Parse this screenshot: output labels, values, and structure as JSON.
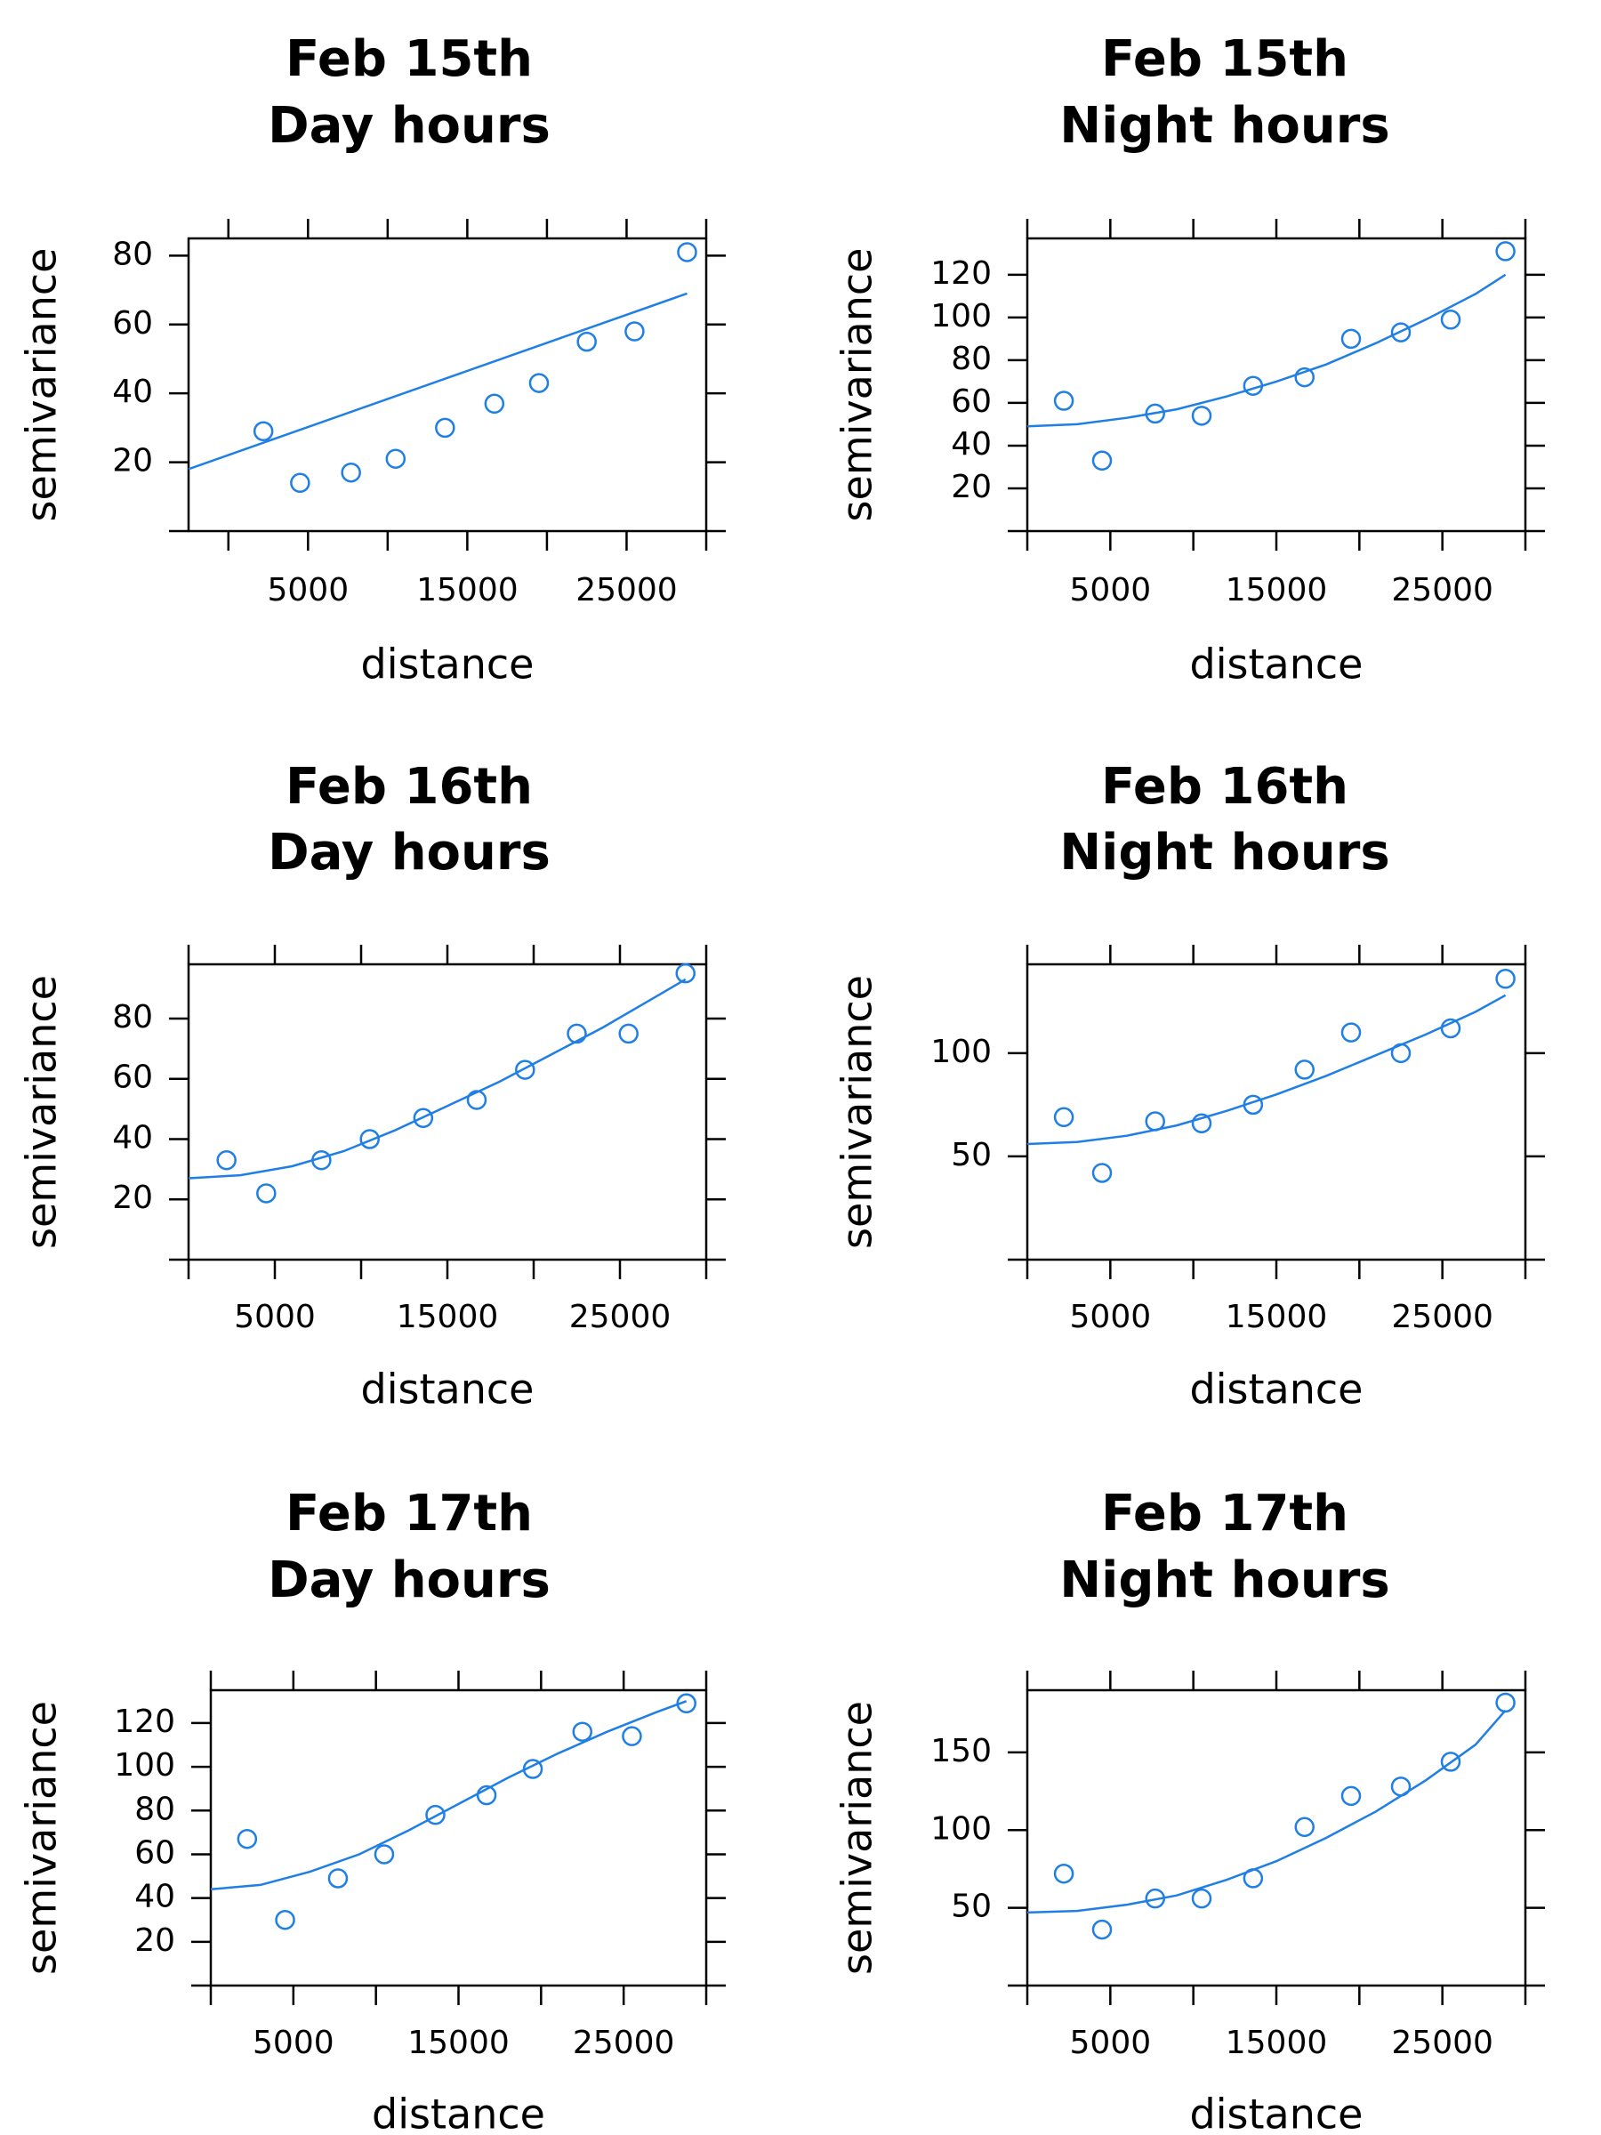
{
  "style": {
    "series_color": "#1f7fe5",
    "axis_color": "#000000"
  },
  "chart_data": [
    {
      "type": "scatter",
      "title": [
        "Feb 15th",
        "Day hours"
      ],
      "xlabel": "distance",
      "ylabel": "semivariance",
      "xlim": [
        -2500,
        30000
      ],
      "ylim": [
        0,
        85
      ],
      "xticks": [
        0,
        5000,
        10000,
        15000,
        20000,
        25000,
        30000
      ],
      "xtick_labels": [
        "5000",
        "15000",
        "25000"
      ],
      "yticks": [
        20,
        40,
        60,
        80
      ],
      "ytick_labels": [
        "20",
        "40",
        "60",
        "80"
      ],
      "points": {
        "x": [
          2200,
          4500,
          7700,
          10500,
          13600,
          16700,
          19500,
          22500,
          25500,
          28800
        ],
        "y": [
          29,
          14,
          17,
          21,
          30,
          37,
          43,
          55,
          58,
          81
        ]
      },
      "fit": {
        "x": [
          -2500,
          28800
        ],
        "y": [
          18,
          69
        ]
      }
    },
    {
      "type": "scatter",
      "title": [
        "Feb 15th",
        "Night hours"
      ],
      "xlabel": "distance",
      "ylabel": "semivariance",
      "xlim": [
        0,
        30000
      ],
      "ylim": [
        0,
        137
      ],
      "xticks": [
        0,
        5000,
        10000,
        15000,
        20000,
        25000,
        30000
      ],
      "xtick_labels": [
        "5000",
        "15000",
        "25000"
      ],
      "yticks": [
        20,
        40,
        60,
        80,
        100,
        120
      ],
      "ytick_labels": [
        "20",
        "40",
        "60",
        "80",
        "100",
        "120"
      ],
      "points": {
        "x": [
          2200,
          4500,
          7700,
          10500,
          13600,
          16700,
          19500,
          22500,
          25500,
          28800
        ],
        "y": [
          61,
          33,
          55,
          54,
          68,
          72,
          90,
          93,
          99,
          131
        ]
      },
      "fit": {
        "x": [
          0,
          3000,
          6000,
          9000,
          12000,
          15000,
          18000,
          21000,
          24000,
          27000,
          28800
        ],
        "y": [
          49,
          50,
          53,
          57,
          63,
          70,
          78,
          88,
          99,
          111,
          120
        ]
      }
    },
    {
      "type": "scatter",
      "title": [
        "Feb 16th",
        "Day hours"
      ],
      "xlabel": "distance",
      "ylabel": "semivariance",
      "xlim": [
        0,
        30000
      ],
      "ylim": [
        0,
        98
      ],
      "xticks": [
        0,
        5000,
        10000,
        15000,
        20000,
        25000,
        30000
      ],
      "xtick_labels": [
        "5000",
        "15000",
        "25000"
      ],
      "yticks": [
        20,
        40,
        60,
        80
      ],
      "ytick_labels": [
        "20",
        "40",
        "60",
        "80"
      ],
      "points": {
        "x": [
          2200,
          4500,
          7700,
          10500,
          13600,
          16700,
          19500,
          22500,
          25500,
          28800
        ],
        "y": [
          33,
          22,
          33,
          40,
          47,
          53,
          63,
          75,
          75,
          95
        ]
      },
      "fit": {
        "x": [
          0,
          3000,
          6000,
          9000,
          12000,
          15000,
          18000,
          21000,
          24000,
          27000,
          28800
        ],
        "y": [
          27,
          28,
          31,
          36,
          43,
          51,
          59,
          68,
          77,
          87,
          93
        ]
      }
    },
    {
      "type": "scatter",
      "title": [
        "Feb 16th",
        "Night hours"
      ],
      "xlabel": "distance",
      "ylabel": "semivariance",
      "xlim": [
        0,
        30000
      ],
      "ylim": [
        0,
        143
      ],
      "xticks": [
        0,
        5000,
        10000,
        15000,
        20000,
        25000,
        30000
      ],
      "xtick_labels": [
        "5000",
        "15000",
        "25000"
      ],
      "yticks": [
        50,
        100
      ],
      "ytick_labels": [
        "50",
        "100"
      ],
      "points": {
        "x": [
          2200,
          4500,
          7700,
          10500,
          13600,
          16700,
          19500,
          22500,
          25500,
          28800
        ],
        "y": [
          69,
          42,
          67,
          66,
          75,
          92,
          110,
          100,
          112,
          136
        ]
      },
      "fit": {
        "x": [
          0,
          3000,
          6000,
          9000,
          12000,
          15000,
          18000,
          21000,
          24000,
          27000,
          28800
        ],
        "y": [
          56,
          57,
          60,
          65,
          72,
          80,
          89,
          99,
          109,
          120,
          128
        ]
      }
    },
    {
      "type": "scatter",
      "title": [
        "Feb 17th",
        "Day hours"
      ],
      "xlabel": "distance",
      "ylabel": "semivariance",
      "xlim": [
        0,
        30000
      ],
      "ylim": [
        0,
        135
      ],
      "xticks": [
        0,
        5000,
        10000,
        15000,
        20000,
        25000,
        30000
      ],
      "xtick_labels": [
        "5000",
        "15000",
        "25000"
      ],
      "yticks": [
        20,
        40,
        60,
        80,
        100,
        120
      ],
      "ytick_labels": [
        "20",
        "40",
        "60",
        "80",
        "100",
        "120"
      ],
      "points": {
        "x": [
          2200,
          4500,
          7700,
          10500,
          13600,
          16700,
          19500,
          22500,
          25500,
          28800
        ],
        "y": [
          67,
          30,
          49,
          60,
          78,
          87,
          99,
          116,
          114,
          129
        ]
      },
      "fit": {
        "x": [
          0,
          3000,
          6000,
          9000,
          12000,
          15000,
          18000,
          21000,
          24000,
          27000,
          28800
        ],
        "y": [
          44,
          46,
          52,
          60,
          71,
          83,
          95,
          106,
          116,
          125,
          130
        ]
      }
    },
    {
      "type": "scatter",
      "title": [
        "Feb 17th",
        "Night hours"
      ],
      "xlabel": "distance",
      "ylabel": "semivariance",
      "xlim": [
        0,
        30000
      ],
      "ylim": [
        0,
        190
      ],
      "xticks": [
        0,
        5000,
        10000,
        15000,
        20000,
        25000,
        30000
      ],
      "xtick_labels": [
        "5000",
        "15000",
        "25000"
      ],
      "yticks": [
        50,
        100,
        150
      ],
      "ytick_labels": [
        "50",
        "100",
        "150"
      ],
      "points": {
        "x": [
          2200,
          4500,
          7700,
          10500,
          13600,
          16700,
          19500,
          22500,
          25500,
          28800
        ],
        "y": [
          72,
          36,
          56,
          56,
          69,
          102,
          122,
          128,
          144,
          182
        ]
      },
      "fit": {
        "x": [
          0,
          3000,
          6000,
          9000,
          12000,
          15000,
          18000,
          21000,
          24000,
          27000,
          28800
        ],
        "y": [
          47,
          48,
          52,
          58,
          68,
          80,
          95,
          112,
          132,
          155,
          177
        ]
      }
    }
  ]
}
